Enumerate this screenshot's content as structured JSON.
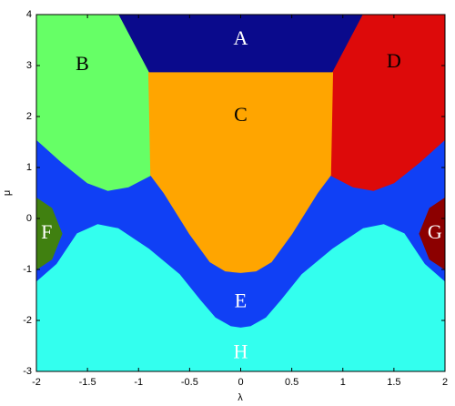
{
  "chart_data": {
    "type": "region",
    "xlabel": "λ",
    "ylabel": "μ",
    "xlim": [
      -2,
      2
    ],
    "ylim": [
      -3,
      4
    ],
    "xticks": [
      -2,
      -1.5,
      -1,
      -0.5,
      0,
      0.5,
      1,
      1.5,
      2
    ],
    "yticks": [
      -3,
      -2,
      -1,
      0,
      1,
      2,
      3,
      4
    ],
    "regions": [
      {
        "name": "E",
        "color": "#1040f5",
        "label_color": "#ffffff",
        "label_x": 0,
        "label_y": -1.65,
        "x": [
          -2,
          2,
          2,
          -2
        ],
        "y": [
          4,
          4,
          -3,
          -3
        ]
      },
      {
        "name": "A",
        "color": "#0a0a8c",
        "label_color": "#ffffff",
        "label_x": 0,
        "label_y": 3.5,
        "x": [
          -1.2,
          1.2,
          0.9,
          -0.9
        ],
        "y": [
          4,
          4,
          2.86,
          2.86
        ]
      },
      {
        "name": "B",
        "color": "#66ff66",
        "label_color": "#000000",
        "label_x": -1.55,
        "label_y": 3,
        "x": [
          -2,
          -1.2,
          -0.9,
          -0.88,
          -1.1,
          -1.3,
          -1.5,
          -1.75,
          -2
        ],
        "y": [
          4,
          4,
          2.86,
          0.85,
          0.62,
          0.55,
          0.7,
          1.1,
          1.55
        ]
      },
      {
        "name": "D",
        "color": "#dd0a0a",
        "label_color": "#000000",
        "label_x": 1.5,
        "label_y": 3.05,
        "x": [
          2,
          1.2,
          0.9,
          0.88,
          1.1,
          1.3,
          1.5,
          1.75,
          2
        ],
        "y": [
          4,
          4,
          2.86,
          0.85,
          0.62,
          0.55,
          0.7,
          1.1,
          1.55
        ]
      },
      {
        "name": "C",
        "color": "#ffa500",
        "label_color": "#000000",
        "label_x": 0,
        "label_y": 2,
        "x": [
          -0.9,
          0.9,
          0.88,
          0.75,
          0.5,
          0.3,
          0.15,
          0,
          -0.15,
          -0.3,
          -0.5,
          -0.75,
          -0.88
        ],
        "y": [
          2.86,
          2.86,
          0.85,
          0.5,
          -0.3,
          -0.85,
          -1.03,
          -1.06,
          -1.03,
          -0.85,
          -0.3,
          0.5,
          0.85
        ]
      },
      {
        "name": "H",
        "color": "#33ffee",
        "label_color": "#ffffff",
        "label_x": 0,
        "label_y": -2.65,
        "x": [
          -2,
          2,
          2,
          1.8,
          1.6,
          1.4,
          1.2,
          0.9,
          0.6,
          0.4,
          0.25,
          0.1,
          0,
          -0.1,
          -0.25,
          -0.4,
          -0.6,
          -0.9,
          -1.2,
          -1.4,
          -1.6,
          -1.8,
          -2
        ],
        "y": [
          -3,
          -3,
          -1.25,
          -0.9,
          -0.3,
          -0.12,
          -0.2,
          -0.6,
          -1.1,
          -1.6,
          -1.95,
          -2.12,
          -2.15,
          -2.12,
          -1.95,
          -1.6,
          -1.1,
          -0.6,
          -0.2,
          -0.12,
          -0.3,
          -0.9,
          -1.25
        ]
      },
      {
        "name": "F",
        "color": "#408010",
        "label_color": "#ffffff",
        "label_x": -1.9,
        "label_y": -0.3,
        "x": [
          -2,
          -1.85,
          -1.75,
          -1.85,
          -2
        ],
        "y": [
          0.4,
          0.2,
          -0.3,
          -0.8,
          -1.0
        ]
      },
      {
        "name": "G",
        "color": "#8c0000",
        "label_color": "#ffffff",
        "label_x": 1.9,
        "label_y": -0.3,
        "x": [
          2,
          1.85,
          1.75,
          1.85,
          2
        ],
        "y": [
          0.4,
          0.2,
          -0.3,
          -0.8,
          -1.0
        ]
      }
    ]
  }
}
